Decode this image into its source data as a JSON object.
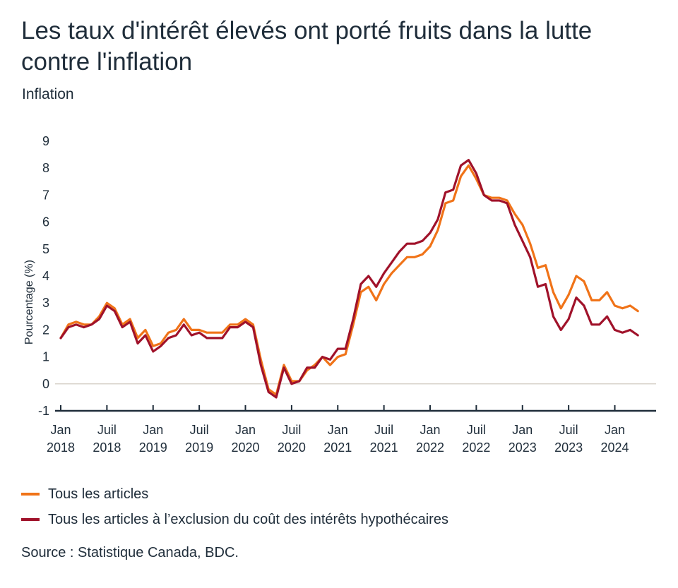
{
  "header": {
    "title": "Les taux d'intérêt élevés ont porté fruits dans la lutte contre l'inflation",
    "subtitle": "Inflation"
  },
  "source": "Source : Statistique Canada, BDC.",
  "colors": {
    "series_1": "#f07318",
    "series_2": "#a0122a",
    "axis": "#1f2d3a",
    "zero_line": "#d9d4cc"
  },
  "chart_data": {
    "type": "line",
    "ylabel": "Pourcentage (%)",
    "ylim": [
      -1,
      9
    ],
    "yticks": [
      "-1",
      "0",
      "1",
      "2",
      "3",
      "4",
      "5",
      "6",
      "7",
      "8",
      "9"
    ],
    "grid": false,
    "legend_position": "bottom",
    "x_start": "2018-01",
    "x_end": "2024-06",
    "xticks": [
      {
        "month": "2018-01",
        "line1": "Jan",
        "line2": "2018"
      },
      {
        "month": "2018-07",
        "line1": "Juil",
        "line2": "2018"
      },
      {
        "month": "2019-01",
        "line1": "Jan",
        "line2": "2019"
      },
      {
        "month": "2019-07",
        "line1": "Juil",
        "line2": "2019"
      },
      {
        "month": "2020-01",
        "line1": "Jan",
        "line2": "2020"
      },
      {
        "month": "2020-07",
        "line1": "Juil",
        "line2": "2020"
      },
      {
        "month": "2021-01",
        "line1": "Jan",
        "line2": "2021"
      },
      {
        "month": "2021-07",
        "line1": "Juil",
        "line2": "2021"
      },
      {
        "month": "2022-01",
        "line1": "Jan",
        "line2": "2022"
      },
      {
        "month": "2022-07",
        "line1": "Juil",
        "line2": "2022"
      },
      {
        "month": "2023-01",
        "line1": "Jan",
        "line2": "2023"
      },
      {
        "month": "2023-07",
        "line1": "Juil",
        "line2": "2023"
      },
      {
        "month": "2024-01",
        "line1": "Jan",
        "line2": "2024"
      }
    ],
    "series": [
      {
        "name": "Tous les articles",
        "color": "#f07318",
        "values": [
          1.7,
          2.2,
          2.3,
          2.2,
          2.2,
          2.5,
          3.0,
          2.8,
          2.2,
          2.4,
          1.7,
          2.0,
          1.4,
          1.5,
          1.9,
          2.0,
          2.4,
          2.0,
          2.0,
          1.9,
          1.9,
          1.9,
          2.2,
          2.2,
          2.4,
          2.2,
          0.9,
          -0.2,
          -0.4,
          0.7,
          0.1,
          0.1,
          0.5,
          0.7,
          1.0,
          0.7,
          1.0,
          1.1,
          2.2,
          3.4,
          3.6,
          3.1,
          3.7,
          4.1,
          4.4,
          4.7,
          4.7,
          4.8,
          5.1,
          5.7,
          6.7,
          6.8,
          7.7,
          8.1,
          7.6,
          7.0,
          6.9,
          6.9,
          6.8,
          6.3,
          5.9,
          5.2,
          4.3,
          4.4,
          3.4,
          2.8,
          3.3,
          4.0,
          3.8,
          3.1,
          3.1,
          3.4,
          2.9,
          2.8,
          2.9,
          2.7
        ]
      },
      {
        "name": "Tous les articles à l’exclusion du coût des intérêts hypothécaires",
        "color": "#a0122a",
        "values": [
          1.7,
          2.1,
          2.2,
          2.1,
          2.2,
          2.4,
          2.9,
          2.7,
          2.1,
          2.3,
          1.5,
          1.8,
          1.2,
          1.4,
          1.7,
          1.8,
          2.2,
          1.8,
          1.9,
          1.7,
          1.7,
          1.7,
          2.1,
          2.1,
          2.3,
          2.1,
          0.7,
          -0.3,
          -0.5,
          0.6,
          0.0,
          0.1,
          0.6,
          0.6,
          1.0,
          0.9,
          1.3,
          1.3,
          2.4,
          3.7,
          4.0,
          3.6,
          4.1,
          4.5,
          4.9,
          5.2,
          5.2,
          5.3,
          5.6,
          6.1,
          7.1,
          7.2,
          8.1,
          8.3,
          7.8,
          7.0,
          6.8,
          6.8,
          6.7,
          5.9,
          5.3,
          4.7,
          3.6,
          3.7,
          2.5,
          2.0,
          2.4,
          3.2,
          2.9,
          2.2,
          2.2,
          2.5,
          2.0,
          1.9,
          2.0,
          1.8
        ]
      }
    ]
  }
}
